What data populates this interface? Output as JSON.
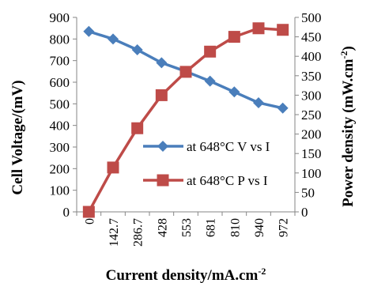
{
  "chart_data": {
    "type": "line",
    "xlabel": "Current density/mA.cm",
    "xlabel_sup": "-2",
    "ylabel_left": "Cell  Voltage/(mV)",
    "ylabel_right": "Power density  (mW.cm",
    "ylabel_right_sup": "-2",
    "ylabel_right_tail": ")",
    "categories": [
      "0",
      "142.7",
      "286.7",
      "428",
      "553",
      "681",
      "810",
      "940",
      "972"
    ],
    "y_left": {
      "range": [
        0,
        900
      ],
      "ticks": [
        0,
        100,
        200,
        300,
        400,
        500,
        600,
        700,
        800,
        900
      ]
    },
    "y_right": {
      "range": [
        0,
        500
      ],
      "ticks": [
        0,
        50,
        100,
        150,
        200,
        250,
        300,
        350,
        400,
        450,
        500
      ]
    },
    "grid": false,
    "legend_position": "center-right",
    "series": [
      {
        "name": "at 648°C V vs I",
        "axis": "left",
        "color": "#4a7ebb",
        "marker": "diamond",
        "values": [
          835,
          800,
          750,
          690,
          650,
          605,
          555,
          505,
          480
        ]
      },
      {
        "name": "at 648°C P vs I",
        "axis": "right",
        "color": "#be4b48",
        "marker": "square",
        "values": [
          0,
          114,
          215,
          300,
          360,
          412,
          450,
          472,
          468
        ]
      }
    ]
  }
}
